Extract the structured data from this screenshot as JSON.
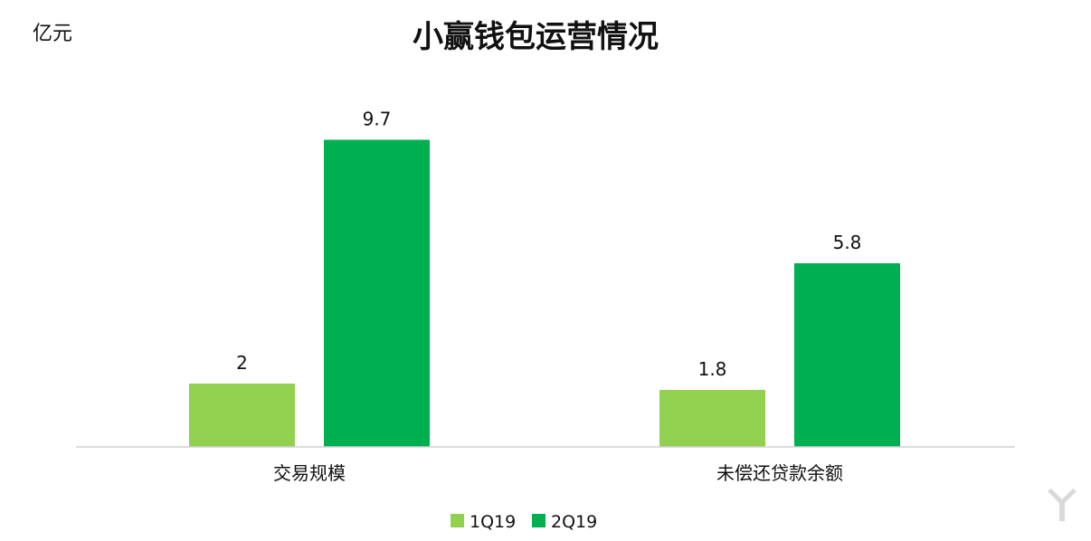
{
  "chart_data": {
    "type": "bar",
    "title": "小赢钱包运营情况",
    "unit": "亿元",
    "categories": [
      "交易规模",
      "未偿还贷款余额"
    ],
    "series": [
      {
        "name": "1Q19",
        "color": "#92d050",
        "values": [
          2,
          1.8
        ]
      },
      {
        "name": "2Q19",
        "color": "#00b050",
        "values": [
          9.7,
          5.8
        ]
      }
    ],
    "data_labels": true,
    "ylim": [
      0,
      10
    ],
    "grid": false,
    "legend_position": "bottom"
  },
  "watermark": {
    "icon": "yiou-logo-icon"
  }
}
